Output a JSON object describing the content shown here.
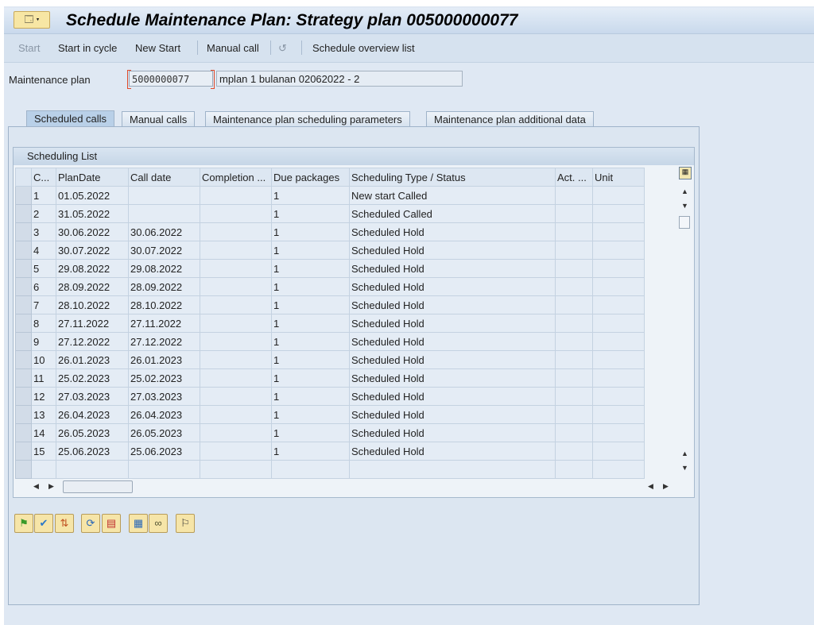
{
  "title": "Schedule Maintenance Plan: Strategy plan 005000000077",
  "toolbar": {
    "start": "Start",
    "start_in_cycle": "Start in cycle",
    "new_start": "New Start",
    "manual_call": "Manual call",
    "undo_icon": "undo-icon",
    "schedule_overview": "Schedule overview list"
  },
  "plan": {
    "label": "Maintenance plan",
    "value": "5000000077",
    "description": "mplan 1 bulanan 02062022 - 2"
  },
  "tabs": [
    "Scheduled calls",
    "Manual calls",
    "Maintenance plan scheduling parameters",
    "Maintenance plan additional data"
  ],
  "active_tab": "Scheduled calls",
  "grid": {
    "title": "Scheduling List",
    "columns": [
      "C...",
      "PlanDate",
      "Call date",
      "Completion ...",
      "Due packages",
      "Scheduling Type / Status",
      "Act. ...",
      "Unit"
    ],
    "rows": [
      [
        "1",
        "01.05.2022",
        "",
        "",
        "1",
        "New start  Called",
        "",
        ""
      ],
      [
        "2",
        "31.05.2022",
        "",
        "",
        "1",
        "Scheduled  Called",
        "",
        ""
      ],
      [
        "3",
        "30.06.2022",
        "30.06.2022",
        "",
        "1",
        "Scheduled  Hold",
        "",
        ""
      ],
      [
        "4",
        "30.07.2022",
        "30.07.2022",
        "",
        "1",
        "Scheduled  Hold",
        "",
        ""
      ],
      [
        "5",
        "29.08.2022",
        "29.08.2022",
        "",
        "1",
        "Scheduled  Hold",
        "",
        ""
      ],
      [
        "6",
        "28.09.2022",
        "28.09.2022",
        "",
        "1",
        "Scheduled  Hold",
        "",
        ""
      ],
      [
        "7",
        "28.10.2022",
        "28.10.2022",
        "",
        "1",
        "Scheduled  Hold",
        "",
        ""
      ],
      [
        "8",
        "27.11.2022",
        "27.11.2022",
        "",
        "1",
        "Scheduled  Hold",
        "",
        ""
      ],
      [
        "9",
        "27.12.2022",
        "27.12.2022",
        "",
        "1",
        "Scheduled  Hold",
        "",
        ""
      ],
      [
        "10",
        "26.01.2023",
        "26.01.2023",
        "",
        "1",
        "Scheduled  Hold",
        "",
        ""
      ],
      [
        "11",
        "25.02.2023",
        "25.02.2023",
        "",
        "1",
        "Scheduled  Hold",
        "",
        ""
      ],
      [
        "12",
        "27.03.2023",
        "27.03.2023",
        "",
        "1",
        "Scheduled  Hold",
        "",
        ""
      ],
      [
        "13",
        "26.04.2023",
        "26.04.2023",
        "",
        "1",
        "Scheduled  Hold",
        "",
        ""
      ],
      [
        "14",
        "26.05.2023",
        "26.05.2023",
        "",
        "1",
        "Scheduled  Hold",
        "",
        ""
      ],
      [
        "15",
        "25.06.2023",
        "25.06.2023",
        "",
        "1",
        "Scheduled  Hold",
        "",
        ""
      ],
      [
        "",
        "",
        "",
        "",
        "",
        "",
        "",
        ""
      ]
    ]
  },
  "bottom_buttons": [
    "flag-icon",
    "check-edit-icon",
    "sort-icon",
    "refresh-icon",
    "copy-icon",
    "calculator-icon",
    "glasses-icon",
    "checkered-flag-icon"
  ]
}
